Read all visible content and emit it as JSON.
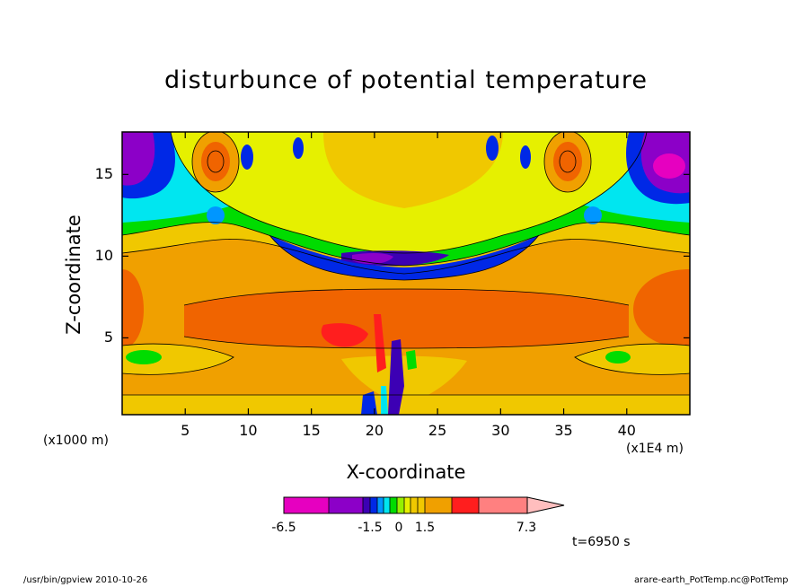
{
  "footer": {
    "left": "/usr/bin/gpview   2010-10-26",
    "right": "arare-earth_PotTemp.nc@PotTemp"
  },
  "colors": {
    "background": "#ffffff",
    "levels": [
      "#e600c0",
      "#8c00c8",
      "#3c00b4",
      "#0028e6",
      "#0096ff",
      "#00e6f0",
      "#00dc00",
      "#96f000",
      "#e6f000",
      "#f0c800",
      "#f0a000",
      "#f06400",
      "#ff1e1e",
      "#ff8080",
      "#ffbebe"
    ]
  },
  "chart_data": {
    "type": "contour",
    "title": "disturbunce of potential temperature",
    "xlabel": "X-coordinate",
    "ylabel": "Z-coordinate",
    "x_unit_label": "(x1E4 m)",
    "y_unit_label": "(x1000 m)",
    "xlim": [
      0,
      45
    ],
    "ylim": [
      0.3,
      17.6
    ],
    "x_ticks": [
      5,
      10,
      15,
      20,
      25,
      30,
      35,
      40
    ],
    "y_ticks": [
      5,
      10,
      15
    ],
    "colorbar": {
      "orientation": "horizontal",
      "extend": "max",
      "labels": [
        "-6.5",
        "-1.5",
        "0",
        "1.5",
        "7.3"
      ],
      "label_values": [
        -6.5,
        -1.5,
        0,
        1.5,
        7.3
      ]
    },
    "annotation": "t=6950 s",
    "regions": [
      {
        "name": "upper warm core left",
        "x": 7.5,
        "z": 15.5,
        "value": 2.0
      },
      {
        "name": "upper warm core right",
        "x": 35.5,
        "z": 15.5,
        "value": 2.0
      },
      {
        "name": "upper cold corner left",
        "x": 1.5,
        "z": 15.5,
        "value": -2.5
      },
      {
        "name": "upper cold corner right",
        "x": 43.5,
        "z": 15.5,
        "value": -5.5
      },
      {
        "name": "central cold trough",
        "x": 21.5,
        "z": 9.7,
        "value": -2.5
      },
      {
        "name": "mid-level warm band",
        "x": 22.5,
        "z": 6.0,
        "value": 2.0
      },
      {
        "name": "mid-level warm core",
        "x": 19.0,
        "z": 5.0,
        "value": 3.0
      },
      {
        "name": "low-level cool patch left",
        "x": 3.0,
        "z": 3.5,
        "value": 0.2
      },
      {
        "name": "low-level cool patch right",
        "x": 40.0,
        "z": 3.5,
        "value": 0.2
      }
    ]
  }
}
